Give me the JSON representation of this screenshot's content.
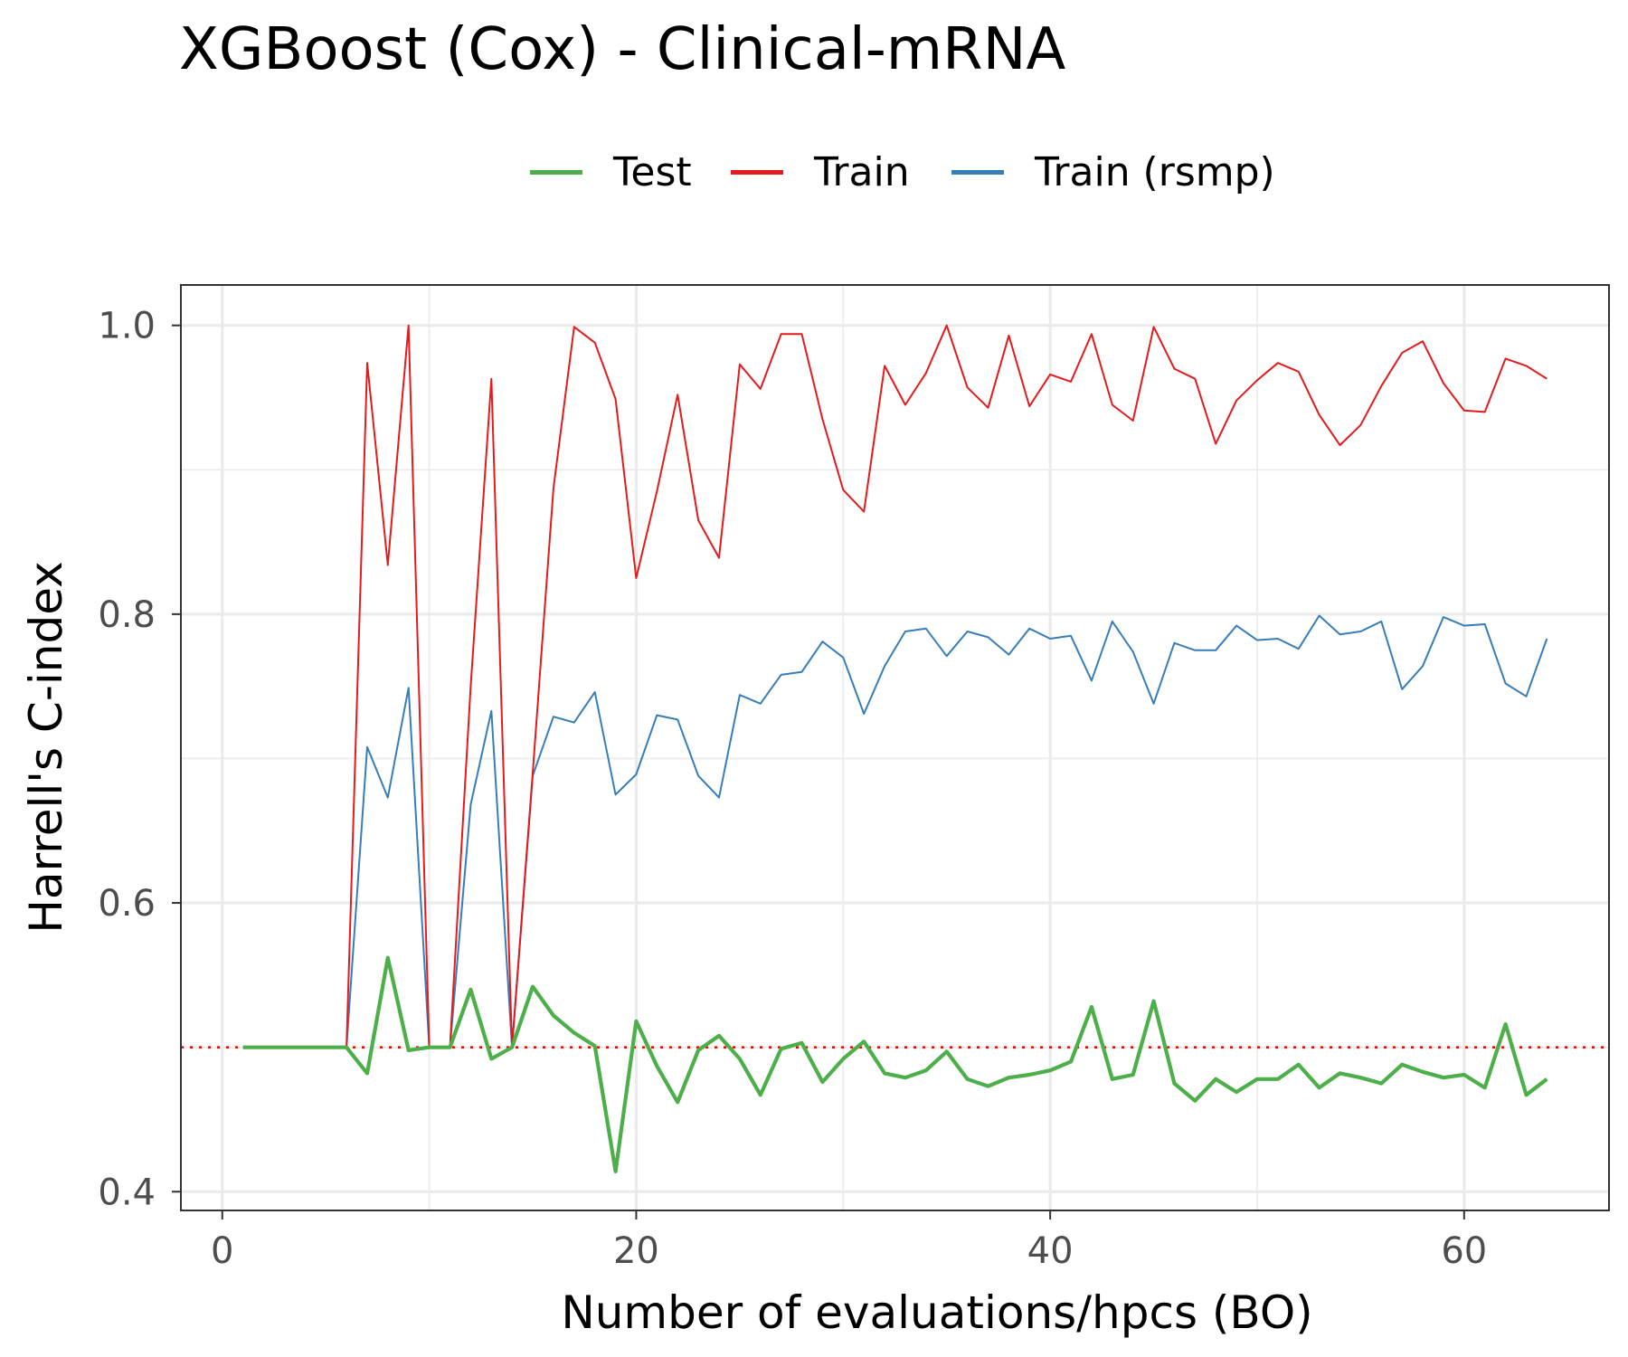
{
  "chart_data": {
    "type": "line",
    "title": "XGBoost (Cox) - Clinical-mRNA",
    "xlabel": "Number of evaluations/hpcs (BO)",
    "ylabel": "Harrell's C-index",
    "xlim": [
      -2,
      67
    ],
    "ylim": [
      0.387,
      1.028
    ],
    "x_ticks": [
      0,
      20,
      40,
      60
    ],
    "x_tick_labels": [
      "0",
      "20",
      "40",
      "60"
    ],
    "y_ticks": [
      0.4,
      0.6,
      0.8,
      1.0
    ],
    "y_tick_labels": [
      "0.4",
      "0.6",
      "0.8",
      "1.0"
    ],
    "grid": true,
    "legend_position": "top",
    "reference_line": {
      "y": 0.5,
      "style": "dotted",
      "color": "#ff0000"
    },
    "series": [
      {
        "name": "Test",
        "color": "#4daf4a",
        "x": [
          1,
          2,
          3,
          4,
          5,
          6,
          7,
          8,
          9,
          10,
          11,
          12,
          13,
          14,
          15,
          16,
          17,
          18,
          19,
          20,
          21,
          22,
          23,
          24,
          25,
          26,
          27,
          28,
          29,
          30,
          31,
          32,
          33,
          34,
          35,
          36,
          37,
          38,
          39,
          40,
          41,
          42,
          43,
          44,
          45,
          46,
          47,
          48,
          49,
          50,
          51,
          52,
          53,
          54,
          55,
          56,
          57,
          58,
          59,
          60,
          61,
          62,
          63,
          64
        ],
        "values": [
          0.5,
          0.5,
          0.5,
          0.5,
          0.5,
          0.5,
          0.482,
          0.562,
          0.498,
          0.5,
          0.5,
          0.54,
          0.492,
          0.5,
          0.542,
          0.522,
          0.51,
          0.501,
          0.414,
          0.518,
          0.487,
          0.462,
          0.498,
          0.508,
          0.492,
          0.467,
          0.499,
          0.503,
          0.476,
          0.492,
          0.504,
          0.482,
          0.479,
          0.484,
          0.497,
          0.478,
          0.473,
          0.479,
          0.481,
          0.484,
          0.49,
          0.528,
          0.478,
          0.481,
          0.532,
          0.475,
          0.463,
          0.478,
          0.469,
          0.478,
          0.478,
          0.488,
          0.472,
          0.482,
          0.479,
          0.475,
          0.488,
          0.483,
          0.479,
          0.481,
          0.472,
          0.516,
          0.467,
          0.478
        ]
      },
      {
        "name": "Train",
        "color": "#e41a1c",
        "x": [
          1,
          2,
          3,
          4,
          5,
          6,
          7,
          8,
          9,
          10,
          11,
          12,
          13,
          14,
          15,
          16,
          17,
          18,
          19,
          20,
          21,
          22,
          23,
          24,
          25,
          26,
          27,
          28,
          29,
          30,
          31,
          32,
          33,
          34,
          35,
          36,
          37,
          38,
          39,
          40,
          41,
          42,
          43,
          44,
          45,
          46,
          47,
          48,
          49,
          50,
          51,
          52,
          53,
          54,
          55,
          56,
          57,
          58,
          59,
          60,
          61,
          62,
          63,
          64
        ],
        "values": [
          0.5,
          0.5,
          0.5,
          0.5,
          0.5,
          0.5,
          0.974,
          0.834,
          1.0,
          0.5,
          0.5,
          0.75,
          0.963,
          0.5,
          0.69,
          0.887,
          0.999,
          0.988,
          0.949,
          0.825,
          0.885,
          0.952,
          0.865,
          0.839,
          0.973,
          0.956,
          0.994,
          0.994,
          0.935,
          0.886,
          0.871,
          0.972,
          0.945,
          0.967,
          1.0,
          0.957,
          0.943,
          0.993,
          0.944,
          0.966,
          0.961,
          0.994,
          0.945,
          0.934,
          0.999,
          0.97,
          0.963,
          0.918,
          0.948,
          0.962,
          0.974,
          0.968,
          0.938,
          0.917,
          0.931,
          0.958,
          0.981,
          0.989,
          0.96,
          0.941,
          0.94,
          0.977,
          0.972,
          0.963
        ]
      },
      {
        "name": "Train (rsmp)",
        "color": "#377eb8",
        "x": [
          1,
          2,
          3,
          4,
          5,
          6,
          7,
          8,
          9,
          10,
          11,
          12,
          13,
          14,
          15,
          16,
          17,
          18,
          19,
          20,
          21,
          22,
          23,
          24,
          25,
          26,
          27,
          28,
          29,
          30,
          31,
          32,
          33,
          34,
          35,
          36,
          37,
          38,
          39,
          40,
          41,
          42,
          43,
          44,
          45,
          46,
          47,
          48,
          49,
          50,
          51,
          52,
          53,
          54,
          55,
          56,
          57,
          58,
          59,
          60,
          61,
          62,
          63,
          64
        ],
        "values": [
          0.5,
          0.5,
          0.5,
          0.5,
          0.5,
          0.5,
          0.708,
          0.673,
          0.749,
          0.5,
          0.5,
          0.668,
          0.733,
          0.5,
          0.688,
          0.729,
          0.725,
          0.746,
          0.675,
          0.689,
          0.73,
          0.727,
          0.688,
          0.673,
          0.744,
          0.738,
          0.758,
          0.76,
          0.781,
          0.77,
          0.731,
          0.764,
          0.788,
          0.79,
          0.771,
          0.788,
          0.784,
          0.772,
          0.79,
          0.783,
          0.785,
          0.754,
          0.795,
          0.774,
          0.738,
          0.78,
          0.775,
          0.775,
          0.792,
          0.782,
          0.783,
          0.776,
          0.799,
          0.786,
          0.788,
          0.795,
          0.748,
          0.764,
          0.798,
          0.792,
          0.793,
          0.752,
          0.743,
          0.783
        ]
      }
    ]
  }
}
